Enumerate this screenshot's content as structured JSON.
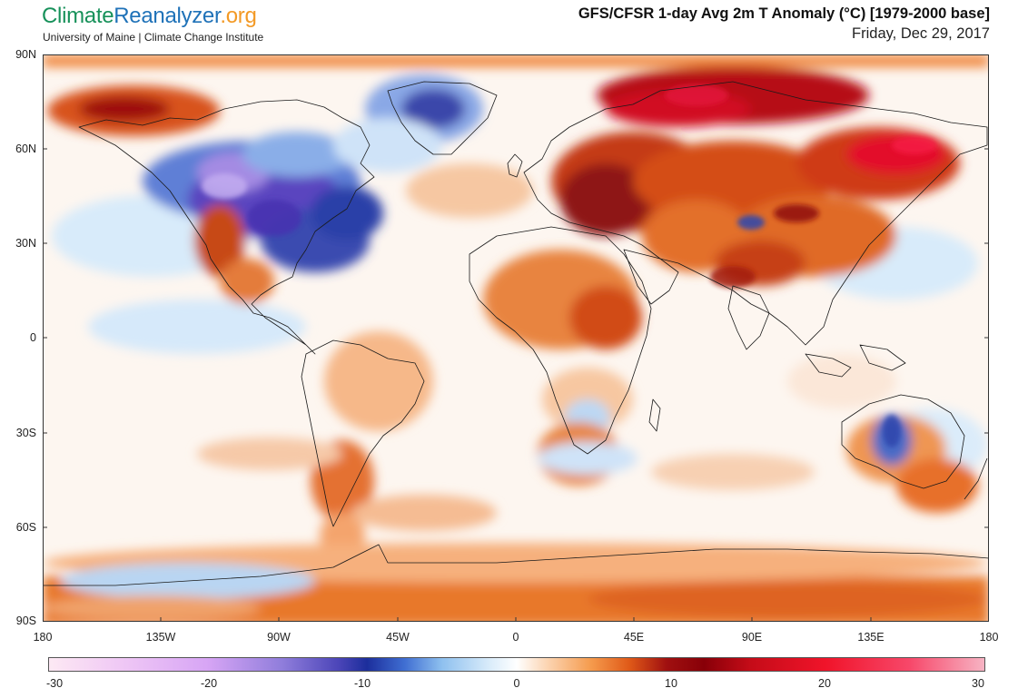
{
  "header": {
    "logo_part1": "Climate",
    "logo_part2": "Reanalyzer",
    "logo_part3": ".org",
    "subtitle": "University of Maine | Climate Change Institute",
    "title": "GFS/CFSR 1-day Avg 2m T Anomaly (°C) [1979-2000 base]",
    "date": "Friday, Dec 29, 2017"
  },
  "map": {
    "lat_labels": [
      "90N",
      "60N",
      "30N",
      "0",
      "30S",
      "60S",
      "90S"
    ],
    "lon_labels": [
      "180",
      "135W",
      "90W",
      "45W",
      "0",
      "45E",
      "90E",
      "135E",
      "180"
    ]
  },
  "colorbar": {
    "ticks": [
      "-30",
      "-20",
      "-10",
      "0",
      "10",
      "20",
      "30"
    ],
    "colors": {
      "deep_cold": "#3b1f9e",
      "cold": "#2540b0",
      "cool": "#9cc8ef",
      "neutral": "#ffffff",
      "warm": "#f5a052",
      "hot": "#e04e10",
      "very_hot": "#9e0a12",
      "extreme": "#f5103a"
    }
  }
}
